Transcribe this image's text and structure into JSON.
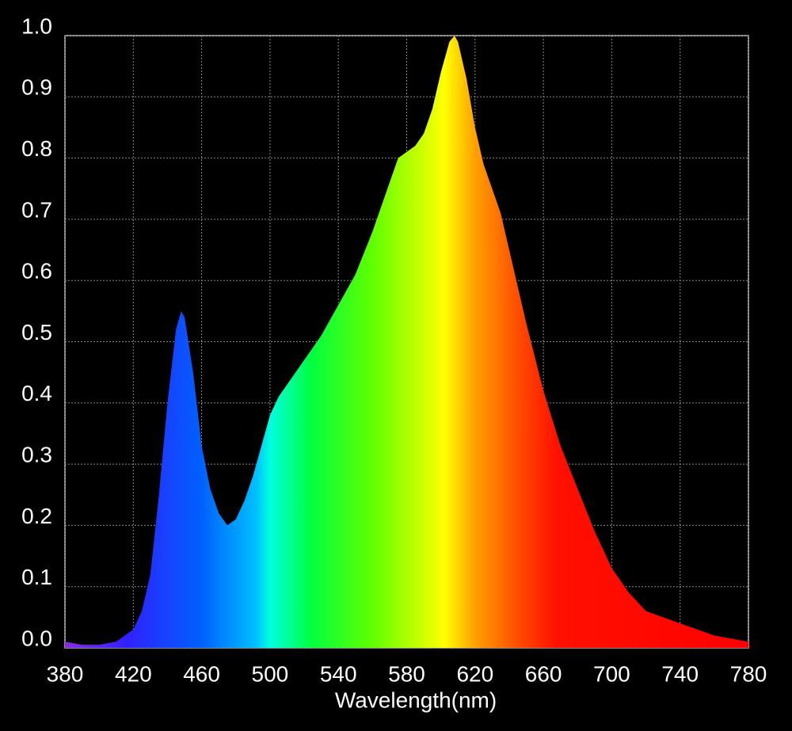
{
  "chart_data": {
    "type": "area",
    "xlabel": "Wavelength(nm)",
    "x": [
      380,
      390,
      400,
      410,
      420,
      425,
      430,
      435,
      440,
      445,
      448,
      450,
      455,
      460,
      465,
      470,
      475,
      480,
      485,
      490,
      495,
      500,
      505,
      510,
      520,
      530,
      540,
      550,
      560,
      570,
      575,
      580,
      585,
      590,
      595,
      600,
      605,
      608,
      610,
      615,
      620,
      625,
      630,
      635,
      640,
      650,
      660,
      670,
      680,
      690,
      700,
      710,
      720,
      730,
      740,
      750,
      760,
      770,
      780
    ],
    "series": [
      {
        "values": [
          0.01,
          0.005,
          0.005,
          0.01,
          0.03,
          0.06,
          0.12,
          0.25,
          0.4,
          0.52,
          0.55,
          0.54,
          0.45,
          0.33,
          0.26,
          0.22,
          0.2,
          0.21,
          0.24,
          0.28,
          0.33,
          0.38,
          0.41,
          0.43,
          0.47,
          0.51,
          0.56,
          0.61,
          0.68,
          0.76,
          0.8,
          0.81,
          0.82,
          0.84,
          0.88,
          0.94,
          0.99,
          1.0,
          0.99,
          0.93,
          0.85,
          0.79,
          0.75,
          0.71,
          0.65,
          0.53,
          0.42,
          0.33,
          0.26,
          0.19,
          0.13,
          0.09,
          0.06,
          0.05,
          0.04,
          0.03,
          0.02,
          0.015,
          0.01
        ]
      }
    ],
    "xlim": [
      380,
      780
    ],
    "xticks": [
      380,
      420,
      460,
      500,
      540,
      580,
      620,
      660,
      700,
      740,
      780
    ],
    "ylim": [
      0,
      1
    ],
    "yticks": [
      {
        "value": 0,
        "label": "0.0"
      },
      0.1,
      0.2,
      0.3,
      0.4,
      0.5,
      0.6,
      0.7,
      0.8,
      0.9,
      {
        "value": 1,
        "label": "1.0"
      }
    ],
    "grid": true
  }
}
